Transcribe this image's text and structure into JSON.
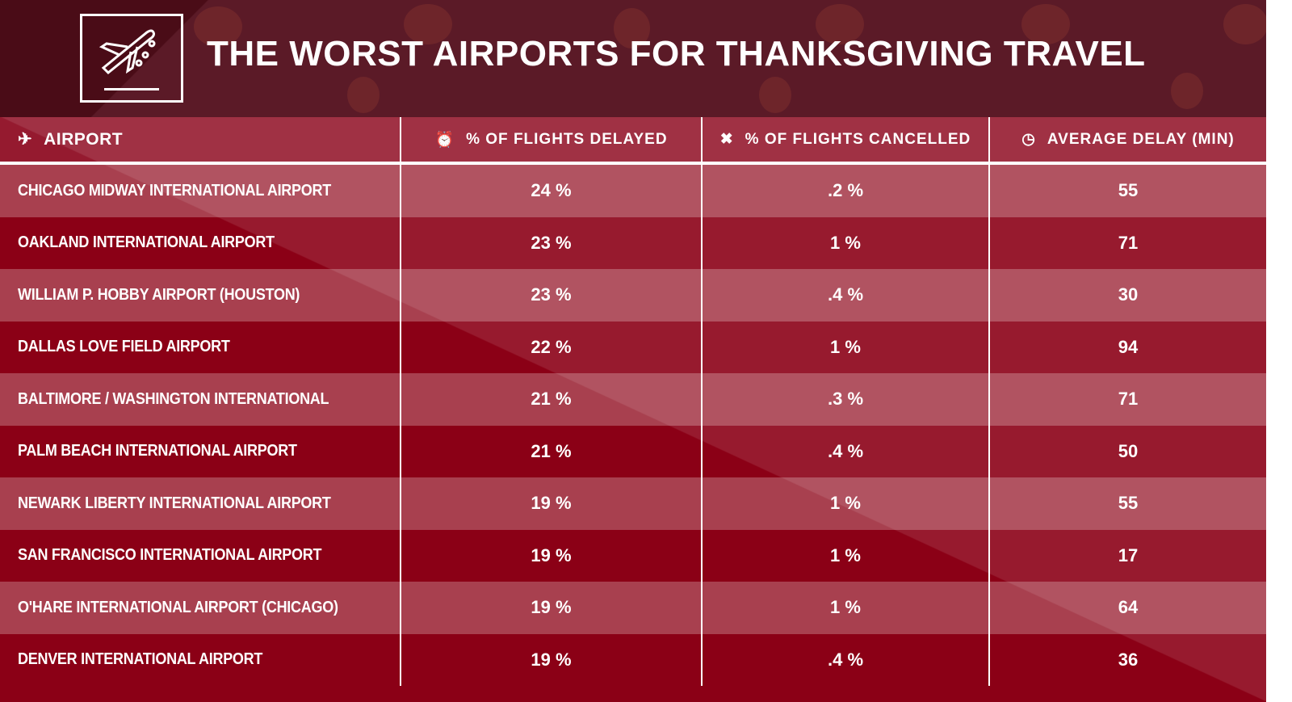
{
  "title": "THE WORST AIRPORTS FOR THANKSGIVING TRAVEL",
  "columns": [
    {
      "label": "AIRPORT",
      "icon": "airplane-icon"
    },
    {
      "label": "% OF FLIGHTS DELAYED",
      "icon": "plane-clock-icon"
    },
    {
      "label": "% OF FLIGHTS CANCELLED",
      "icon": "x-icon"
    },
    {
      "label": "AVERAGE DELAY (MIN)",
      "icon": "clock-icon"
    }
  ],
  "rows": [
    {
      "airport": "Chicago Midway International Airport",
      "delayed": "24 %",
      "cancelled": ".2 %",
      "avg_delay": "55"
    },
    {
      "airport": "Oakland International Airport",
      "delayed": "23 %",
      "cancelled": "1 %",
      "avg_delay": "71"
    },
    {
      "airport": "William P. Hobby Airport (Houston)",
      "delayed": "23 %",
      "cancelled": ".4 %",
      "avg_delay": "30"
    },
    {
      "airport": "Dallas Love Field Airport",
      "delayed": "22 %",
      "cancelled": "1 %",
      "avg_delay": "94"
    },
    {
      "airport": "Baltimore / Washington International",
      "delayed": "21 %",
      "cancelled": ".3 %",
      "avg_delay": "71"
    },
    {
      "airport": "Palm Beach International Airport",
      "delayed": "21 %",
      "cancelled": ".4 %",
      "avg_delay": "50"
    },
    {
      "airport": "Newark Liberty International Airport",
      "delayed": "19 %",
      "cancelled": "1 %",
      "avg_delay": "55"
    },
    {
      "airport": "San Francisco International Airport",
      "delayed": "19 %",
      "cancelled": "1 %",
      "avg_delay": "17"
    },
    {
      "airport": "O'Hare International Airport (Chicago)",
      "delayed": "19 %",
      "cancelled": "1 %",
      "avg_delay": "64"
    },
    {
      "airport": "Denver International Airport",
      "delayed": "19 %",
      "cancelled": ".4 %",
      "avg_delay": "36"
    }
  ]
}
